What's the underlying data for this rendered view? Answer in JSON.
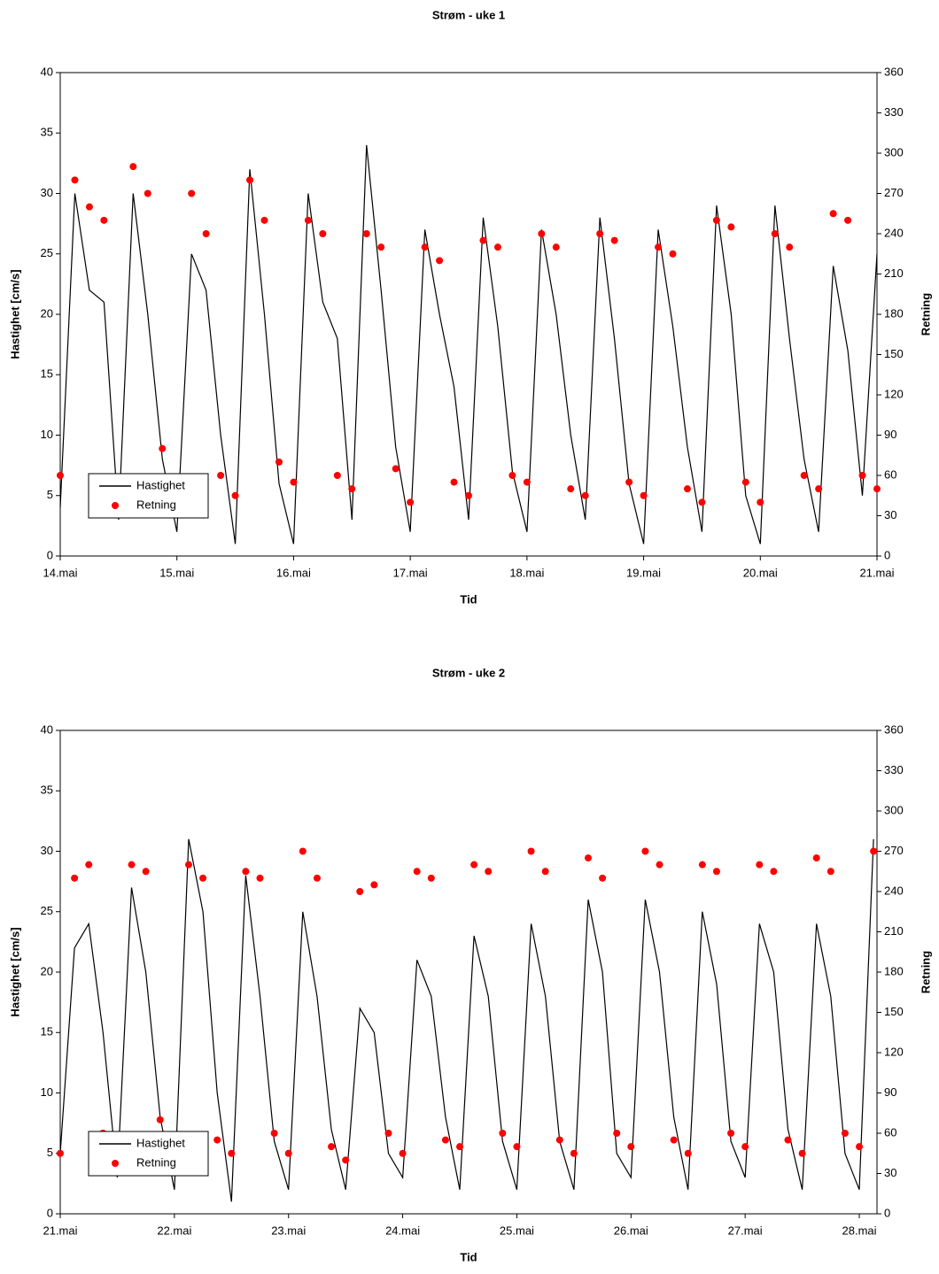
{
  "chart_data": [
    {
      "type": "line",
      "title": "Strøm - uke 1",
      "x_label": "Tid",
      "y_label": "Hastighet [cm/s]",
      "y2_label": "Retning",
      "xlim": [
        14,
        21
      ],
      "ylim": [
        0,
        40
      ],
      "y2lim": [
        0,
        360
      ],
      "xticks": [
        {
          "value": 14,
          "label": "14.mai"
        },
        {
          "value": 15,
          "label": "15.mai"
        },
        {
          "value": 16,
          "label": "16.mai"
        },
        {
          "value": 17,
          "label": "17.mai"
        },
        {
          "value": 18,
          "label": "18.mai"
        },
        {
          "value": 19,
          "label": "19.mai"
        },
        {
          "value": 20,
          "label": "20.mai"
        },
        {
          "value": 21,
          "label": "21.mai"
        }
      ],
      "yticks": [
        0,
        5,
        10,
        15,
        20,
        25,
        30,
        35,
        40
      ],
      "y2ticks": [
        0,
        30,
        60,
        90,
        120,
        150,
        180,
        210,
        240,
        270,
        300,
        330,
        360
      ],
      "legend": "lower left",
      "grid": false,
      "x": [
        14,
        14.125,
        14.25,
        14.375,
        14.5,
        14.625,
        14.75,
        14.875,
        15,
        15.125,
        15.25,
        15.375,
        15.5,
        15.625,
        15.75,
        15.875,
        16,
        16.125,
        16.25,
        16.375,
        16.5,
        16.625,
        16.75,
        16.875,
        17,
        17.125,
        17.25,
        17.375,
        17.5,
        17.625,
        17.75,
        17.875,
        18,
        18.125,
        18.25,
        18.375,
        18.5,
        18.625,
        18.75,
        18.875,
        19,
        19.125,
        19.25,
        19.375,
        19.5,
        19.625,
        19.75,
        19.875,
        20,
        20.125,
        20.25,
        20.375,
        20.5,
        20.625,
        20.75,
        20.875,
        21
      ],
      "series": [
        {
          "name": "Hastighet",
          "type": "line",
          "axis": "y",
          "color": "#000000",
          "values": [
            4,
            30,
            22,
            21,
            3,
            30,
            20,
            8,
            2,
            25,
            22,
            10,
            1,
            32,
            20,
            6,
            1,
            30,
            21,
            18,
            3,
            34,
            22,
            9,
            2,
            27,
            20,
            14,
            3,
            28,
            19,
            7,
            2,
            27,
            20,
            10,
            3,
            28,
            18,
            6,
            1,
            27,
            19,
            9,
            2,
            29,
            20,
            5,
            1,
            29,
            18,
            8,
            2,
            24,
            17,
            5,
            25
          ]
        },
        {
          "name": "Retning",
          "type": "scatter",
          "axis": "y2",
          "color": "#ff0000",
          "values": [
            60,
            280,
            260,
            250,
            55,
            290,
            270,
            80,
            50,
            270,
            240,
            60,
            45,
            280,
            250,
            70,
            55,
            250,
            240,
            60,
            50,
            240,
            230,
            65,
            40,
            230,
            220,
            55,
            45,
            235,
            230,
            60,
            55,
            240,
            230,
            50,
            45,
            240,
            235,
            55,
            45,
            230,
            225,
            50,
            40,
            250,
            245,
            55,
            40,
            240,
            230,
            60,
            50,
            255,
            250,
            60,
            50
          ]
        }
      ]
    },
    {
      "type": "line",
      "title": "Strøm - uke 2",
      "x_label": "Tid",
      "y_label": "Hastighet [cm/s]",
      "y2_label": "Retning",
      "xlim": [
        21,
        28.155
      ],
      "ylim": [
        0,
        40
      ],
      "y2lim": [
        0,
        360
      ],
      "xticks": [
        {
          "value": 21,
          "label": "21.mai"
        },
        {
          "value": 22,
          "label": "22.mai"
        },
        {
          "value": 23,
          "label": "23.mai"
        },
        {
          "value": 24,
          "label": "24.mai"
        },
        {
          "value": 25,
          "label": "25.mai"
        },
        {
          "value": 26,
          "label": "26.mai"
        },
        {
          "value": 27,
          "label": "27.mai"
        },
        {
          "value": 28,
          "label": "28.mai"
        }
      ],
      "yticks": [
        0,
        5,
        10,
        15,
        20,
        25,
        30,
        35,
        40
      ],
      "y2ticks": [
        0,
        30,
        60,
        90,
        120,
        150,
        180,
        210,
        240,
        270,
        300,
        330,
        360
      ],
      "legend": "lower left",
      "grid": false,
      "x": [
        21,
        21.125,
        21.25,
        21.375,
        21.5,
        21.625,
        21.75,
        21.875,
        22,
        22.125,
        22.25,
        22.375,
        22.5,
        22.625,
        22.75,
        22.875,
        23,
        23.125,
        23.25,
        23.375,
        23.5,
        23.625,
        23.75,
        23.875,
        24,
        24.125,
        24.25,
        24.375,
        24.5,
        24.625,
        24.75,
        24.875,
        25,
        25.125,
        25.25,
        25.375,
        25.5,
        25.625,
        25.75,
        25.875,
        26,
        26.125,
        26.25,
        26.375,
        26.5,
        26.625,
        26.75,
        26.875,
        27,
        27.125,
        27.25,
        27.375,
        27.5,
        27.625,
        27.75,
        27.875,
        28,
        28.125
      ],
      "series": [
        {
          "name": "Hastighet",
          "type": "line",
          "axis": "y",
          "color": "#000000",
          "values": [
            5,
            22,
            24,
            15,
            3,
            27,
            20,
            8,
            2,
            31,
            25,
            10,
            1,
            28,
            18,
            6,
            2,
            25,
            18,
            7,
            2,
            17,
            15,
            5,
            3,
            21,
            18,
            8,
            2,
            23,
            18,
            6,
            2,
            24,
            18,
            6,
            2,
            26,
            20,
            5,
            3,
            26,
            20,
            8,
            2,
            25,
            19,
            6,
            3,
            24,
            20,
            7,
            2,
            24,
            18,
            5,
            2,
            31
          ]
        },
        {
          "name": "Retning",
          "type": "scatter",
          "axis": "y2",
          "color": "#ff0000",
          "values": [
            45,
            250,
            260,
            60,
            50,
            260,
            255,
            70,
            50,
            260,
            250,
            55,
            45,
            255,
            250,
            60,
            45,
            270,
            250,
            50,
            40,
            240,
            245,
            60,
            45,
            255,
            250,
            55,
            50,
            260,
            255,
            60,
            50,
            270,
            255,
            55,
            45,
            265,
            250,
            60,
            50,
            270,
            260,
            55,
            45,
            260,
            255,
            60,
            50,
            260,
            255,
            55,
            45,
            265,
            255,
            60,
            50,
            270
          ]
        }
      ]
    }
  ]
}
